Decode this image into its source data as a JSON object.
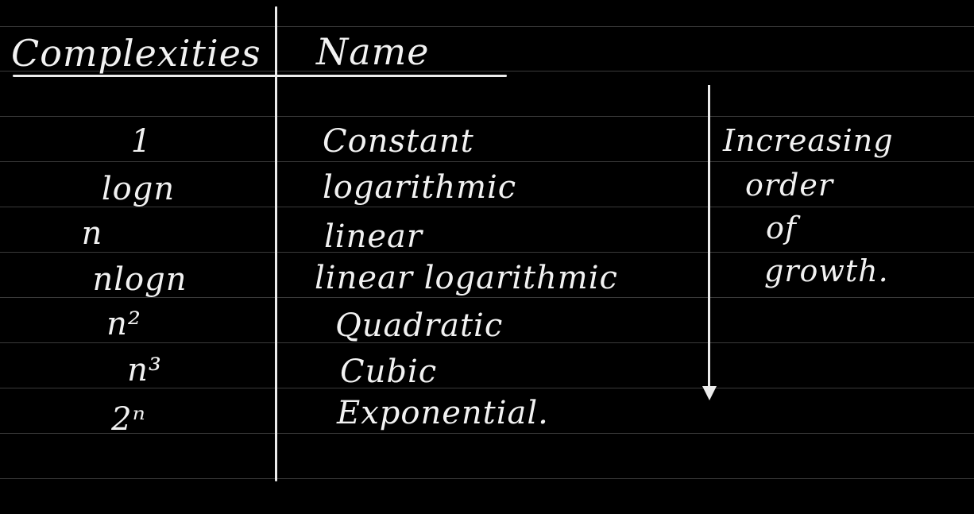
{
  "table": {
    "headers": {
      "complexities": "Complexities",
      "name": "Name"
    },
    "rows": [
      {
        "complexity": "1",
        "name": "Constant"
      },
      {
        "complexity": "logn",
        "name": "logarithmic"
      },
      {
        "complexity": "n",
        "name": "linear"
      },
      {
        "complexity": "nlogn",
        "name": "linear logarithmic"
      },
      {
        "complexity": "n²",
        "name": "Quadratic"
      },
      {
        "complexity": "n³",
        "name": "Cubic"
      },
      {
        "complexity": "2ⁿ",
        "name": "Exponential."
      }
    ]
  },
  "annotation": {
    "lines": [
      "Increasing",
      "order",
      "of",
      "growth."
    ],
    "arrow": "down-arrow-icon"
  },
  "colors": {
    "background": "#000000",
    "ink": "#f2f2f2",
    "ruling": "#3a3a3a"
  }
}
